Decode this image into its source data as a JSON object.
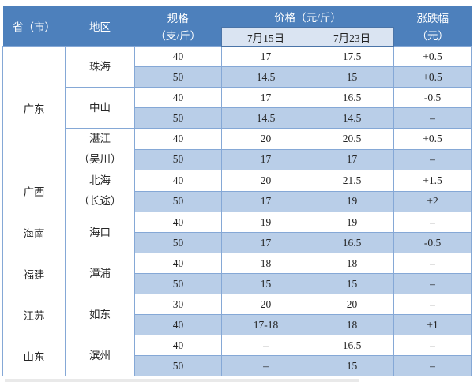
{
  "header": {
    "col_province": "省（市）",
    "col_region": "地区",
    "col_spec_line1": "规格",
    "col_spec_line2": "（支/斤）",
    "col_price_group": "价格（元/斤）",
    "col_date1": "7月15日",
    "col_date2": "7月23日",
    "col_change_line1": "涨跌幅",
    "col_change_line2": "（元）"
  },
  "colors": {
    "header_bg": "#4d80bc",
    "header_text": "#ffffff",
    "date_cell_bg": "#dae4f2",
    "stripe_blue": "#b9cee8",
    "grid_border": "#85a8d6",
    "body_text": "#262626"
  },
  "table": {
    "groups": [
      {
        "province": "广东",
        "regions": [
          {
            "name_lines": [
              "珠海"
            ],
            "rows": [
              [
                "40",
                "17",
                "17.5",
                "+0.5"
              ],
              [
                "50",
                "14.5",
                "15",
                "+0.5"
              ]
            ]
          },
          {
            "name_lines": [
              "中山"
            ],
            "rows": [
              [
                "40",
                "17",
                "16.5",
                "-0.5"
              ],
              [
                "50",
                "14.5",
                "14.5",
                "–"
              ]
            ]
          },
          {
            "name_lines": [
              "湛江",
              "（吴川）"
            ],
            "rows": [
              [
                "40",
                "20",
                "20.5",
                "+0.5"
              ],
              [
                "50",
                "17",
                "17",
                "–"
              ]
            ]
          }
        ]
      },
      {
        "province": "广西",
        "regions": [
          {
            "name_lines": [
              "北海",
              "（长途）"
            ],
            "rows": [
              [
                "40",
                "20",
                "21.5",
                "+1.5"
              ],
              [
                "50",
                "17",
                "19",
                "+2"
              ]
            ]
          }
        ]
      },
      {
        "province": "海南",
        "regions": [
          {
            "name_lines": [
              "海口"
            ],
            "rows": [
              [
                "40",
                "19",
                "19",
                "–"
              ],
              [
                "50",
                "17",
                "16.5",
                "-0.5"
              ]
            ]
          }
        ]
      },
      {
        "province": "福建",
        "regions": [
          {
            "name_lines": [
              "漳浦"
            ],
            "rows": [
              [
                "40",
                "18",
                "18",
                "–"
              ],
              [
                "50",
                "15",
                "15",
                "–"
              ]
            ]
          }
        ]
      },
      {
        "province": "江苏",
        "regions": [
          {
            "name_lines": [
              "如东"
            ],
            "rows": [
              [
                "30",
                "20",
                "20",
                "–"
              ],
              [
                "40",
                "17-18",
                "18",
                "+1"
              ]
            ]
          }
        ]
      },
      {
        "province": "山东",
        "regions": [
          {
            "name_lines": [
              "滨州"
            ],
            "rows": [
              [
                "40",
                "–",
                "16.5",
                "–"
              ],
              [
                "50",
                "–",
                "15",
                "–"
              ]
            ]
          }
        ]
      }
    ]
  },
  "chart_data": {
    "type": "table",
    "columns": [
      "省（市）",
      "地区",
      "规格（支/斤）",
      "价格（元/斤）7月15日",
      "价格（元/斤）7月23日",
      "涨跌幅（元）"
    ],
    "rows": [
      [
        "广东",
        "珠海",
        "40",
        "17",
        "17.5",
        "+0.5"
      ],
      [
        "广东",
        "珠海",
        "50",
        "14.5",
        "15",
        "+0.5"
      ],
      [
        "广东",
        "中山",
        "40",
        "17",
        "16.5",
        "-0.5"
      ],
      [
        "广东",
        "中山",
        "50",
        "14.5",
        "14.5",
        "–"
      ],
      [
        "广东",
        "湛江（吴川）",
        "40",
        "20",
        "20.5",
        "+0.5"
      ],
      [
        "广东",
        "湛江（吴川）",
        "50",
        "17",
        "17",
        "–"
      ],
      [
        "广西",
        "北海（长途）",
        "40",
        "20",
        "21.5",
        "+1.5"
      ],
      [
        "广西",
        "北海（长途）",
        "50",
        "17",
        "19",
        "+2"
      ],
      [
        "海南",
        "海口",
        "40",
        "19",
        "19",
        "–"
      ],
      [
        "海南",
        "海口",
        "50",
        "17",
        "16.5",
        "-0.5"
      ],
      [
        "福建",
        "漳浦",
        "40",
        "18",
        "18",
        "–"
      ],
      [
        "福建",
        "漳浦",
        "50",
        "15",
        "15",
        "–"
      ],
      [
        "江苏",
        "如东",
        "30",
        "20",
        "20",
        "–"
      ],
      [
        "江苏",
        "如东",
        "40",
        "17-18",
        "18",
        "+1"
      ],
      [
        "山东",
        "滨州",
        "40",
        "–",
        "16.5",
        "–"
      ],
      [
        "山东",
        "滨州",
        "50",
        "–",
        "15",
        "–"
      ]
    ]
  }
}
